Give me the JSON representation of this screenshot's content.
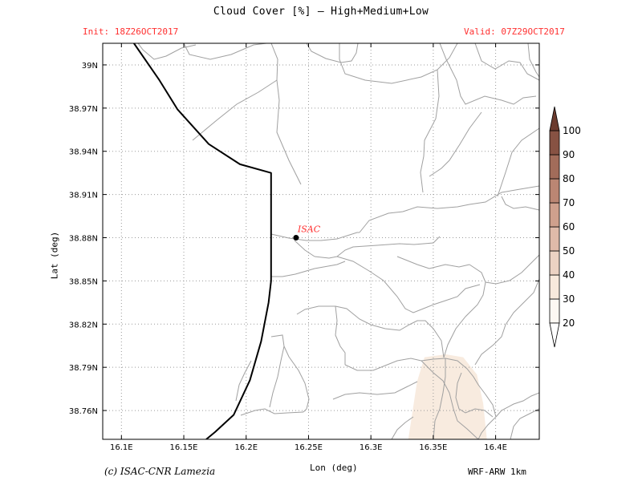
{
  "header": {
    "title": "Cloud Cover [%] — High+Medium+Low",
    "init": "Init: 18Z26OCT2017",
    "valid": "Valid: 07Z29OCT2017"
  },
  "axes": {
    "xlabel": "Lon (deg)",
    "ylabel": "Lat (deg)",
    "xticks": [
      16.1,
      16.15,
      16.2,
      16.25,
      16.3,
      16.35,
      16.4
    ],
    "xtick_labels": [
      "16.1E",
      "16.15E",
      "16.2E",
      "16.25E",
      "16.3E",
      "16.35E",
      "16.4E"
    ],
    "yticks": [
      39.0,
      38.97,
      38.94,
      38.91,
      38.88,
      38.85,
      38.82,
      38.79,
      38.76
    ],
    "ytick_labels": [
      "39N",
      "38.97N",
      "38.94N",
      "38.91N",
      "38.88N",
      "38.85N",
      "38.82N",
      "38.79N",
      "38.76N"
    ],
    "xlim": [
      16.085,
      16.435
    ],
    "ylim": [
      38.74,
      39.015
    ],
    "grid": "dotted"
  },
  "legend": {
    "levels": [
      20,
      30,
      40,
      50,
      60,
      70,
      80,
      90,
      100
    ],
    "level_labels": [
      "20",
      "30",
      "40",
      "50",
      "60",
      "70",
      "80",
      "90",
      "100"
    ],
    "colors": [
      "#fdf8f3",
      "#f8e9dc",
      "#ecd2c3",
      "#dfbaa9",
      "#cfa08d",
      "#bb8673",
      "#a26c5a",
      "#875243",
      "#6b3b2e"
    ],
    "placement": "right"
  },
  "marker": {
    "label": "ISAC",
    "lon": 16.24,
    "lat": 38.88,
    "color": "#ff3030"
  },
  "cloud_patch": {
    "color": "#f8ebdf",
    "outline": [
      [
        16.33,
        38.74
      ],
      [
        16.337,
        38.78
      ],
      [
        16.343,
        38.797
      ],
      [
        16.36,
        38.799
      ],
      [
        16.374,
        38.797
      ],
      [
        16.385,
        38.785
      ],
      [
        16.39,
        38.765
      ],
      [
        16.393,
        38.74
      ]
    ]
  },
  "coastline": [
    [
      16.11,
      39.015
    ],
    [
      16.13,
      38.99
    ],
    [
      16.145,
      38.969
    ],
    [
      16.17,
      38.945
    ],
    [
      16.195,
      38.931
    ],
    [
      16.22,
      38.925
    ],
    [
      16.22,
      38.862
    ],
    [
      16.22,
      38.85
    ],
    [
      16.218,
      38.835
    ],
    [
      16.212,
      38.808
    ],
    [
      16.203,
      38.781
    ],
    [
      16.19,
      38.757
    ],
    [
      16.175,
      38.745
    ],
    [
      16.168,
      38.74
    ]
  ],
  "footer": {
    "credit": "(c) ISAC-CNR Lamezia",
    "model": "WRF-ARW 1km"
  }
}
